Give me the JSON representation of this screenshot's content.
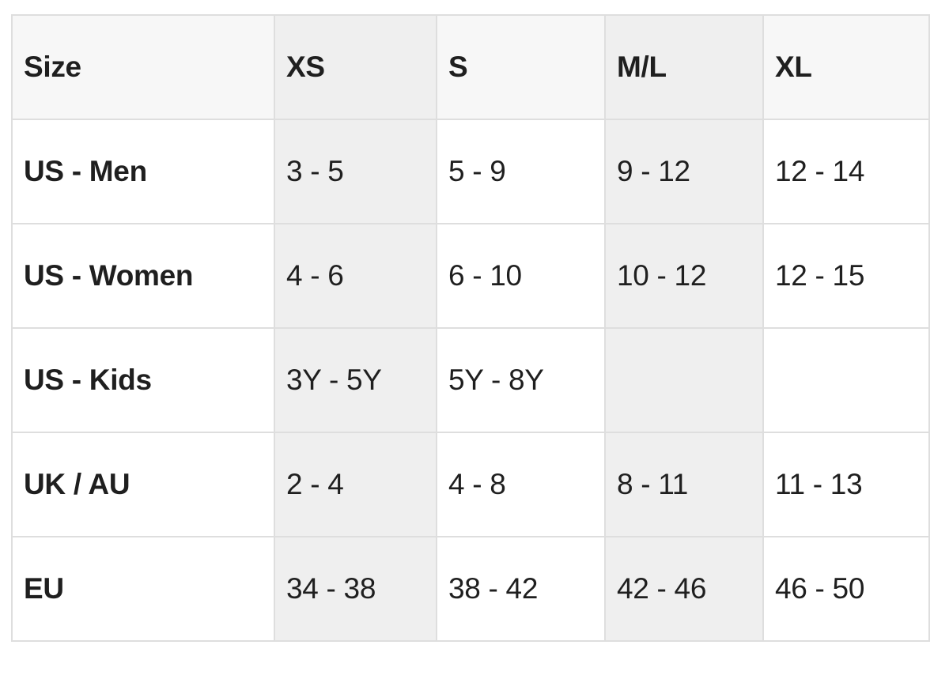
{
  "table": {
    "headers": [
      "Size",
      "XS",
      "S",
      "M/L",
      "XL"
    ],
    "rows": [
      [
        "US - Men",
        "3 - 5",
        "5 - 9",
        "9 - 12",
        "12 - 14"
      ],
      [
        "US - Women",
        "4 - 6",
        "6 - 10",
        "10 - 12",
        "12 - 15"
      ],
      [
        "US - Kids",
        "3Y - 5Y",
        "5Y - 8Y",
        "",
        ""
      ],
      [
        "UK / AU",
        "2 - 4",
        "4 - 8",
        "8 - 11",
        "11 - 13"
      ],
      [
        "EU",
        "34 - 38",
        "38 - 42",
        "42 - 46",
        "46 - 50"
      ]
    ]
  },
  "colors": {
    "header_bg": "#f7f7f7",
    "shaded_column_bg": "#efefef",
    "border": "#dedede",
    "text": "#1f1f1f"
  }
}
